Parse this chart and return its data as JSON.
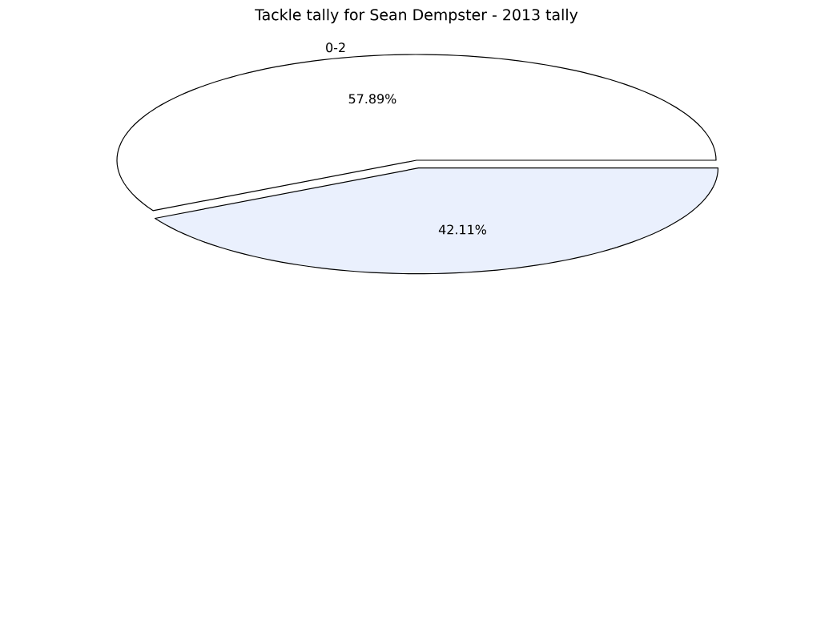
{
  "chart_data": {
    "type": "pie",
    "title": "Tackle tally for Sean Dempster - 2013 tally",
    "categories": [
      "0-2",
      null
    ],
    "values": [
      57.89,
      42.11
    ],
    "value_labels": [
      "57.89%",
      "42.11%"
    ],
    "colors": [
      "#ffffff",
      "#eaf0fd"
    ]
  }
}
